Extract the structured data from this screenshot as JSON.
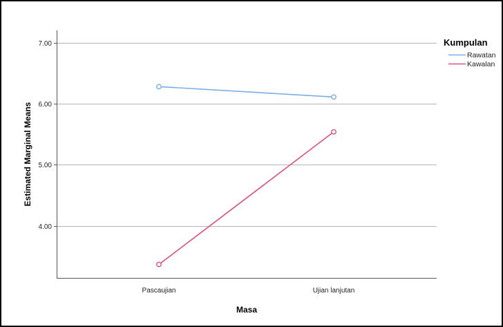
{
  "chart_data": {
    "type": "line",
    "categories": [
      "Pascaujian",
      "Ujian lanjutan"
    ],
    "series": [
      {
        "name": "Rawatan",
        "values": [
          6.28,
          6.11
        ],
        "color": "#7aaee6"
      },
      {
        "name": "Kawalan",
        "values": [
          3.37,
          5.54
        ],
        "color": "#e0507a"
      }
    ],
    "xlabel": "Masa",
    "ylabel": "Estimated Marginal Means",
    "ylim": [
      3.15,
      7.2
    ],
    "yticks": [
      4.0,
      5.0,
      6.0,
      7.0
    ],
    "ytick_labels": [
      "4.00",
      "5.00",
      "6.00",
      "7.00"
    ],
    "grid": "horizontal",
    "legend": {
      "title": "Kumpulan",
      "placement": "top-right outside"
    }
  }
}
